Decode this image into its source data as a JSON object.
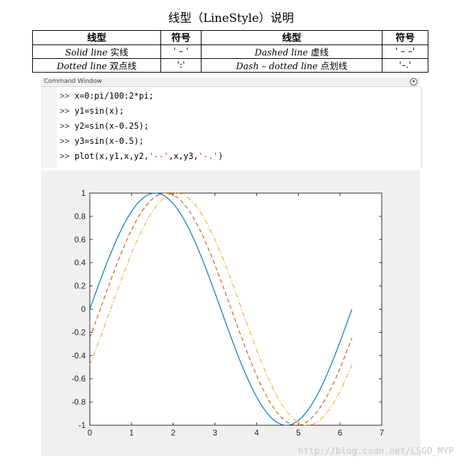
{
  "title": "线型（LineStyle）说明",
  "table": {
    "headers": [
      "线型",
      "符号",
      "线型",
      "符号"
    ],
    "rows": [
      {
        "style1": "Solid line",
        "cn1": "实线",
        "sym1": "' – '",
        "style2": "Dashed line",
        "cn2": "虚线",
        "sym2": "' – –'"
      },
      {
        "style1": "Dotted line",
        "cn1": "双点线",
        "sym1": "':'",
        "style2": "Dash – dotted line",
        "cn2": "点划线",
        "sym2": "'–.'"
      }
    ]
  },
  "command_window": {
    "title": "Command Window",
    "prompt": ">>",
    "lines": [
      "x=0:pi/100:2*pi;",
      "y1=sin(x);",
      "y2=sin(x-0.25);",
      "y3=sin(x-0.5);"
    ],
    "plot_line": {
      "pre": "plot(x,y1,x,y2,",
      "s1": "'--'",
      "mid": ",x,y3,",
      "s2": "'-.'",
      "post": ")"
    }
  },
  "watermark": "http://blog.csdn.net/LSGO_MYP",
  "chart_data": {
    "type": "line",
    "xlim": [
      0,
      7
    ],
    "ylim": [
      -1,
      1
    ],
    "xticks": [
      "0",
      "1",
      "2",
      "3",
      "4",
      "5",
      "6",
      "7"
    ],
    "yticks": [
      "1",
      "0.8",
      "0.6",
      "0.4",
      "0.2",
      "0",
      "-0.2",
      "-0.4",
      "-0.6",
      "-0.8",
      "-1"
    ],
    "x_range": [
      0,
      6.2832
    ],
    "grid": false,
    "series": [
      {
        "formula": "sin(x)",
        "shift": 0,
        "style": "solid",
        "color": "#0072bd"
      },
      {
        "formula": "sin(x-0.25)",
        "shift": 0.25,
        "style": "dashed",
        "color": "#d95319"
      },
      {
        "formula": "sin(x-0.5)",
        "shift": 0.5,
        "style": "dashdot",
        "color": "#edb120"
      }
    ]
  }
}
